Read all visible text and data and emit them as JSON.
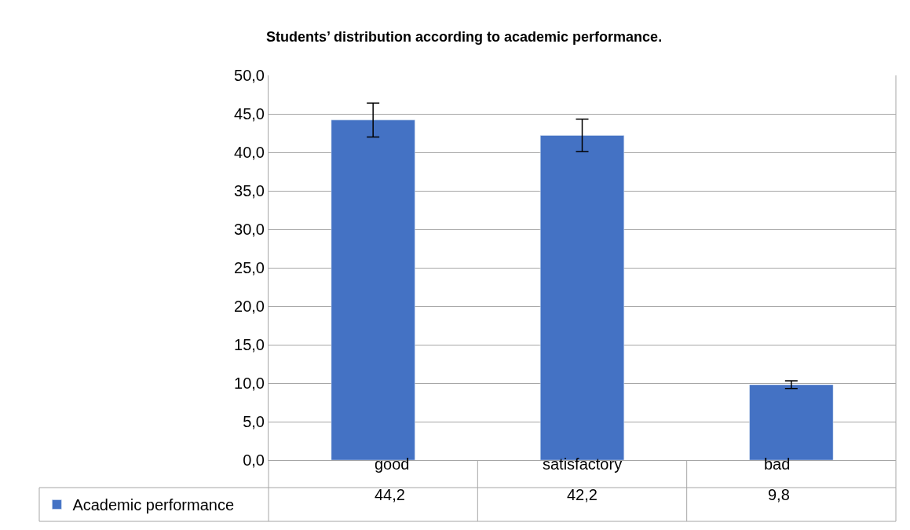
{
  "chart_data": {
    "type": "bar",
    "title": "Students’ distribution according to academic performance.",
    "categories": [
      "good",
      "satisfactory",
      "bad"
    ],
    "series": [
      {
        "name": "Academic performance",
        "color": "#4472c4",
        "values": [
          44.2,
          42.2,
          9.8
        ],
        "errors": [
          2.2,
          2.1,
          0.5
        ],
        "value_labels": [
          "44,2",
          "42,2",
          "9,8"
        ]
      }
    ],
    "ylim": [
      0,
      50
    ],
    "yticks": [
      {
        "value": 0,
        "label": "0,0"
      },
      {
        "value": 5,
        "label": "5,0"
      },
      {
        "value": 10,
        "label": "10,0"
      },
      {
        "value": 15,
        "label": "15,0"
      },
      {
        "value": 20,
        "label": "20,0"
      },
      {
        "value": 25,
        "label": "25,0"
      },
      {
        "value": 30,
        "label": "30,0"
      },
      {
        "value": 35,
        "label": "35,0"
      },
      {
        "value": 40,
        "label": "40,0"
      },
      {
        "value": 45,
        "label": "45,0"
      },
      {
        "value": 50,
        "label": "50,0"
      }
    ],
    "grid": "y",
    "legend": "bottom left"
  }
}
